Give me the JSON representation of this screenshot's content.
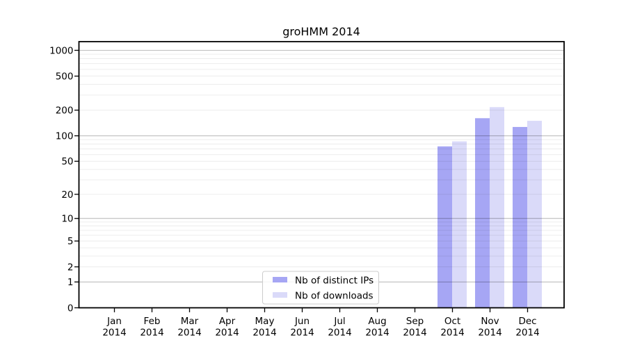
{
  "chart_data": {
    "type": "bar",
    "title": "groHMM 2014",
    "xlabel": "",
    "ylabel": "",
    "yscale": "log1p",
    "grid": true,
    "legend_position": "lower center inside axes",
    "ylim": [
      0,
      1270
    ],
    "yticks": [
      0,
      1,
      2,
      5,
      10,
      20,
      50,
      100,
      200,
      500,
      1000
    ],
    "categories": [
      {
        "month": "Jan",
        "year": "2014"
      },
      {
        "month": "Feb",
        "year": "2014"
      },
      {
        "month": "Mar",
        "year": "2014"
      },
      {
        "month": "Apr",
        "year": "2014"
      },
      {
        "month": "May",
        "year": "2014"
      },
      {
        "month": "Jun",
        "year": "2014"
      },
      {
        "month": "Jul",
        "year": "2014"
      },
      {
        "month": "Aug",
        "year": "2014"
      },
      {
        "month": "Sep",
        "year": "2014"
      },
      {
        "month": "Oct",
        "year": "2014"
      },
      {
        "month": "Nov",
        "year": "2014"
      },
      {
        "month": "Dec",
        "year": "2014"
      }
    ],
    "series": [
      {
        "name": "Nb of distinct IPs",
        "color": "#a6a6f4",
        "values": [
          0,
          0,
          0,
          0,
          0,
          0,
          0,
          0,
          0,
          75,
          161,
          127
        ]
      },
      {
        "name": "Nb of downloads",
        "color": "#dadaf9",
        "values": [
          0,
          0,
          0,
          0,
          0,
          0,
          0,
          0,
          0,
          86,
          217,
          150
        ]
      }
    ]
  },
  "colors": {
    "bar_ips": "#a6a6f4",
    "bar_downloads": "#dadaf9",
    "grid_major": "#c4c4c4",
    "grid_minor": "#ececec",
    "spine": "#000000",
    "legend_border": "#cccccc",
    "background": "#ffffff"
  }
}
